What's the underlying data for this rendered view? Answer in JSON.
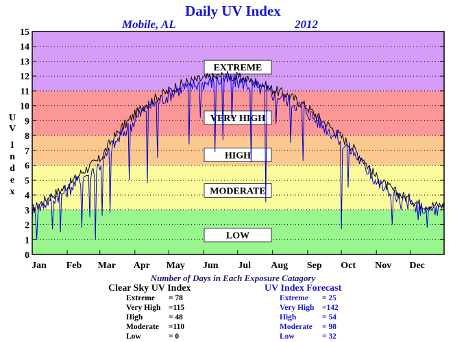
{
  "chart_data": {
    "type": "line",
    "title": "Daily UV Index",
    "location": "Mobile, AL",
    "year": "2012",
    "ylabel": "UV Index",
    "xlabel": "",
    "ylim": [
      0,
      15
    ],
    "yticks": [
      0,
      1,
      2,
      3,
      4,
      5,
      6,
      7,
      8,
      9,
      10,
      11,
      12,
      13,
      14,
      15
    ],
    "xlim": [
      1,
      366
    ],
    "months": [
      "Jan",
      "Feb",
      "Mar",
      "Apr",
      "May",
      "Jun",
      "Jul",
      "Aug",
      "Sep",
      "Oct",
      "Nov",
      "Dec"
    ],
    "month_start_days": [
      1,
      32,
      61,
      92,
      122,
      153,
      183,
      214,
      245,
      275,
      306,
      336
    ],
    "grid": true,
    "bands": [
      {
        "name": "LOW",
        "from": 0,
        "to": 3,
        "color": "#99f58e"
      },
      {
        "name": "MODERATE",
        "from": 3,
        "to": 6,
        "color": "#fbfb9b"
      },
      {
        "name": "HIGH",
        "from": 6,
        "to": 8,
        "color": "#fbc890"
      },
      {
        "name": "VERY HIGH",
        "from": 8,
        "to": 11,
        "color": "#fb9797"
      },
      {
        "name": "EXTREME",
        "from": 11,
        "to": 15,
        "color": "#d59cf8"
      }
    ],
    "band_labels": [
      "EXTREME",
      "VERY HIGH",
      "HIGH",
      "MODERATE",
      "LOW"
    ],
    "band_label_levels": [
      12.6,
      9.2,
      6.7,
      4.3,
      1.3
    ],
    "series": [
      {
        "name": "Clear Sky UV Index",
        "color": "#000000",
        "x": [
          1,
          15,
          32,
          46,
          61,
          70,
          80,
          92,
          100,
          110,
          122,
          128,
          135,
          145,
          153,
          160,
          168,
          176,
          183,
          190,
          198,
          206,
          214,
          225,
          235,
          245,
          255,
          265,
          275,
          285,
          295,
          306,
          315,
          325,
          336,
          345,
          355,
          366
        ],
        "y": [
          3.0,
          3.8,
          4.6,
          5.6,
          6.4,
          7.5,
          8.5,
          9.4,
          10.0,
          10.5,
          11.0,
          11.3,
          11.5,
          11.7,
          11.8,
          11.9,
          12.0,
          12.0,
          11.9,
          11.8,
          11.6,
          11.4,
          11.1,
          10.8,
          10.4,
          9.9,
          9.2,
          8.6,
          7.9,
          7.2,
          6.3,
          5.2,
          4.6,
          4.1,
          3.7,
          3.4,
          3.3,
          3.3
        ]
      },
      {
        "name": "UV Index Forecast",
        "color": "#0000cc",
        "x": [
          1,
          15,
          32,
          46,
          61,
          70,
          80,
          92,
          100,
          110,
          122,
          128,
          135,
          145,
          153,
          160,
          168,
          176,
          183,
          190,
          198,
          206,
          214,
          225,
          235,
          245,
          255,
          265,
          275,
          285,
          295,
          306,
          315,
          325,
          336,
          345,
          355,
          366
        ],
        "y": [
          2.8,
          3.6,
          4.3,
          5.2,
          6.0,
          7.0,
          8.0,
          9.0,
          9.7,
          10.2,
          10.7,
          11.0,
          11.2,
          11.4,
          11.5,
          11.6,
          11.7,
          11.7,
          11.6,
          11.5,
          11.3,
          11.1,
          10.8,
          10.5,
          10.1,
          9.6,
          8.9,
          8.3,
          7.6,
          6.9,
          6.0,
          4.9,
          4.3,
          3.8,
          3.4,
          3.1,
          3.0,
          3.0
        ]
      }
    ],
    "forecast_dips": [
      {
        "x": 5,
        "y": 1.0
      },
      {
        "x": 19,
        "y": 1.7
      },
      {
        "x": 26,
        "y": 1.5
      },
      {
        "x": 45,
        "y": 1.8
      },
      {
        "x": 52,
        "y": 2.5
      },
      {
        "x": 57,
        "y": 1.0
      },
      {
        "x": 63,
        "y": 2.6
      },
      {
        "x": 70,
        "y": 2.8
      },
      {
        "x": 87,
        "y": 5.0
      },
      {
        "x": 103,
        "y": 4.8
      },
      {
        "x": 112,
        "y": 6.5
      },
      {
        "x": 140,
        "y": 7.4
      },
      {
        "x": 150,
        "y": 9.2
      },
      {
        "x": 163,
        "y": 6.9
      },
      {
        "x": 170,
        "y": 7.7
      },
      {
        "x": 178,
        "y": 9.1
      },
      {
        "x": 195,
        "y": 6.2
      },
      {
        "x": 208,
        "y": 3.5
      },
      {
        "x": 217,
        "y": 8.8
      },
      {
        "x": 230,
        "y": 7.5
      },
      {
        "x": 241,
        "y": 6.3
      },
      {
        "x": 275,
        "y": 1.7
      },
      {
        "x": 281,
        "y": 4.5
      },
      {
        "x": 300,
        "y": 6.0
      },
      {
        "x": 320,
        "y": 2.0
      },
      {
        "x": 328,
        "y": 3.0
      },
      {
        "x": 343,
        "y": 2.3
      },
      {
        "x": 351,
        "y": 1.8
      },
      {
        "x": 360,
        "y": 2.6
      }
    ]
  },
  "stats": {
    "heading": "Number of Days in Each Exposure Catagory",
    "clear_sky": {
      "title": "Clear Sky UV Index",
      "rows": [
        {
          "name": "Extreme",
          "value": "= 78"
        },
        {
          "name": "Very High",
          "value": "=115"
        },
        {
          "name": "High",
          "value": "= 48"
        },
        {
          "name": "Moderate",
          "value": "=110"
        },
        {
          "name": "Low",
          "value": "=   0"
        }
      ]
    },
    "forecast": {
      "title": "UV Index Forecast",
      "rows": [
        {
          "name": "Extreme",
          "value": "= 25"
        },
        {
          "name": "Very High",
          "value": "=142"
        },
        {
          "name": "High",
          "value": "= 54"
        },
        {
          "name": "Moderate",
          "value": "= 98"
        },
        {
          "name": "Low",
          "value": "= 32"
        }
      ]
    }
  }
}
